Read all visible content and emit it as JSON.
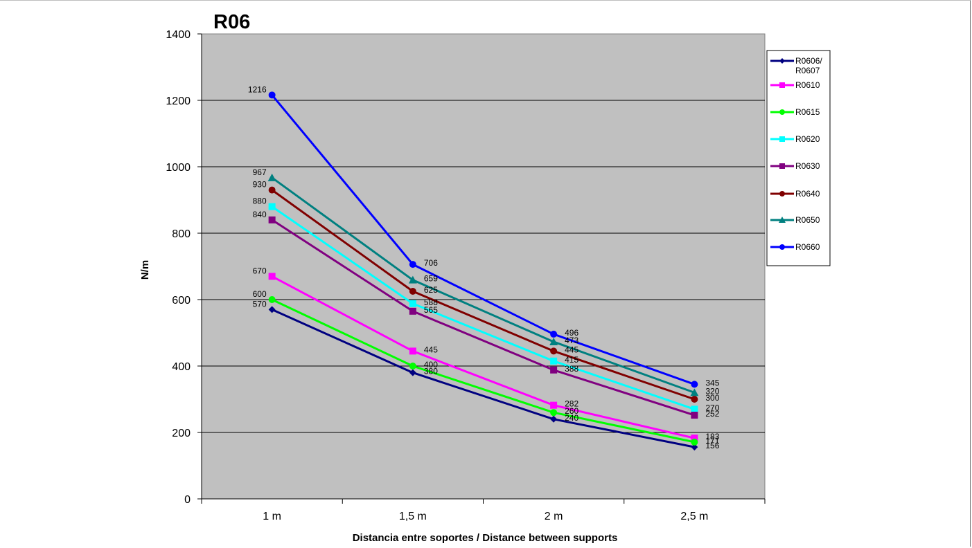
{
  "chart_data": {
    "type": "line",
    "title": "R06",
    "xlabel": "Distancia entre soportes / Distance between supports",
    "ylabel": "N/m",
    "categories": [
      "1 m",
      "1,5 m",
      "2 m",
      "2,5 m"
    ],
    "ylim": [
      0,
      1400
    ],
    "yticks": [
      0,
      200,
      400,
      600,
      800,
      1000,
      1200,
      1400
    ],
    "grid": true,
    "legend_position": "right",
    "plot_background": "#c0c0c0",
    "series": [
      {
        "name": "R0606/ R0607",
        "legend_lines": [
          "R0606/",
          "R0607"
        ],
        "color": "#000080",
        "marker": "diamond",
        "values": [
          570,
          380,
          240,
          156
        ]
      },
      {
        "name": "R0610",
        "legend_lines": [
          "R0610"
        ],
        "color": "#ff00ff",
        "marker": "square",
        "values": [
          670,
          445,
          282,
          183
        ]
      },
      {
        "name": "R0615",
        "legend_lines": [
          "R0615"
        ],
        "color": "#00ff00",
        "marker": "circle",
        "values": [
          600,
          400,
          260,
          171
        ]
      },
      {
        "name": "R0620",
        "legend_lines": [
          "R0620"
        ],
        "color": "#00ffff",
        "marker": "square",
        "values": [
          880,
          588,
          415,
          270
        ]
      },
      {
        "name": "R0630",
        "legend_lines": [
          "R0630"
        ],
        "color": "#800080",
        "marker": "square",
        "values": [
          840,
          565,
          388,
          252
        ]
      },
      {
        "name": "R0640",
        "legend_lines": [
          "R0640"
        ],
        "color": "#800000",
        "marker": "circle",
        "values": [
          930,
          625,
          445,
          300
        ]
      },
      {
        "name": "R0650",
        "legend_lines": [
          "R0650"
        ],
        "color": "#008080",
        "marker": "triangle",
        "values": [
          967,
          659,
          473,
          320
        ]
      },
      {
        "name": "R0660",
        "legend_lines": [
          "R0660"
        ],
        "color": "#0000ff",
        "marker": "circle",
        "values": [
          1216,
          706,
          496,
          345
        ]
      }
    ]
  }
}
